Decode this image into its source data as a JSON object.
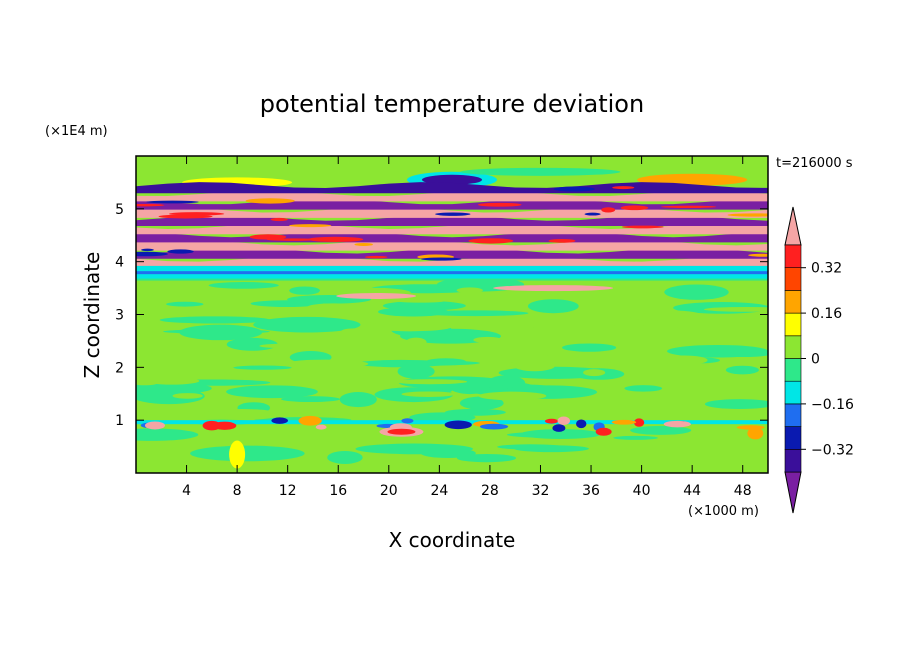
{
  "chart_data": {
    "type": "heatmap",
    "title": "potential temperature deviation",
    "xlabel": "X coordinate",
    "ylabel": "Z coordinate",
    "x_unit": "(×1000 m)",
    "y_unit": "(×1E4 m)",
    "time_label": "t=216000 s",
    "xlim": [
      0,
      50
    ],
    "ylim": [
      0,
      6
    ],
    "x_ticks": [
      4,
      8,
      12,
      16,
      20,
      24,
      28,
      32,
      36,
      40,
      44,
      48
    ],
    "y_ticks": [
      1,
      2,
      3,
      4,
      5
    ],
    "colorbar": {
      "levels": [
        -0.4,
        -0.32,
        -0.24,
        -0.16,
        -0.08,
        0,
        0.08,
        0.16,
        0.24,
        0.32,
        0.4
      ],
      "labels": [
        "0.32",
        "0.16",
        "0",
        "−0.16",
        "−0.32"
      ],
      "label_values": [
        0.32,
        0.16,
        0,
        -0.16,
        -0.32
      ],
      "colors": [
        "#7a1fa2",
        "#3a0f9a",
        "#0a1ab0",
        "#1f6ef0",
        "#00e6e6",
        "#2ee88a",
        "#8ce632",
        "#ffff00",
        "#ffa500",
        "#ff4500",
        "#ff2020",
        "#f5a5a5"
      ],
      "extend": "both"
    },
    "bands": [
      {
        "z0": 0.0,
        "z1": 0.9,
        "level": "positive-small",
        "color": "#8ce632"
      },
      {
        "z0": 0.9,
        "z1": 1.0,
        "level": "mixed",
        "color": "#2ee88a"
      },
      {
        "z0": 1.0,
        "z1": 3.7,
        "level": "near-zero",
        "color": "#8ce632"
      },
      {
        "z0": 3.7,
        "z1": 3.9,
        "level": "negative-small",
        "color": "#00e6e6"
      },
      {
        "z0": 3.9,
        "z1": 5.5,
        "level": "alternating strong",
        "color": "#f5a5a5"
      },
      {
        "z0": 5.5,
        "z1": 6.0,
        "level": "near-zero",
        "color": "#8ce632"
      }
    ]
  }
}
